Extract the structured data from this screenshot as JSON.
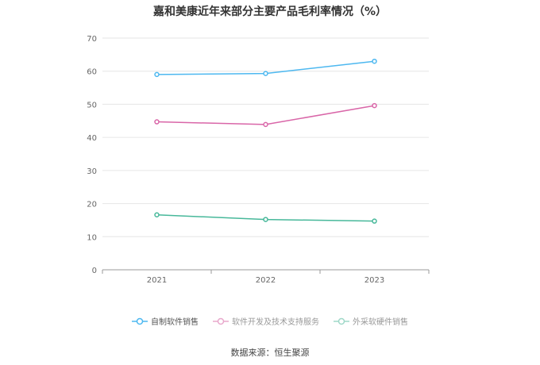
{
  "chart_data": {
    "type": "line",
    "title": "嘉和美康近年来部分主要产品毛利率情况（%）",
    "categories": [
      "2021",
      "2022",
      "2023"
    ],
    "series": [
      {
        "name": "自制软件销售",
        "values": [
          59.0,
          59.3,
          63.0
        ],
        "color": "#4db8f0"
      },
      {
        "name": "软件开发及技术支持服务",
        "values": [
          44.7,
          43.9,
          49.6
        ],
        "color": "#d966a8"
      },
      {
        "name": "外采软硬件销售",
        "values": [
          16.6,
          15.2,
          14.7
        ],
        "color": "#47b89a"
      }
    ],
    "ylim": [
      0,
      70
    ],
    "yticks": [
      0,
      10,
      20,
      30,
      40,
      50,
      60,
      70
    ],
    "grid": true,
    "legend_position": "bottom"
  },
  "source_text": "数据来源：恒生聚源"
}
